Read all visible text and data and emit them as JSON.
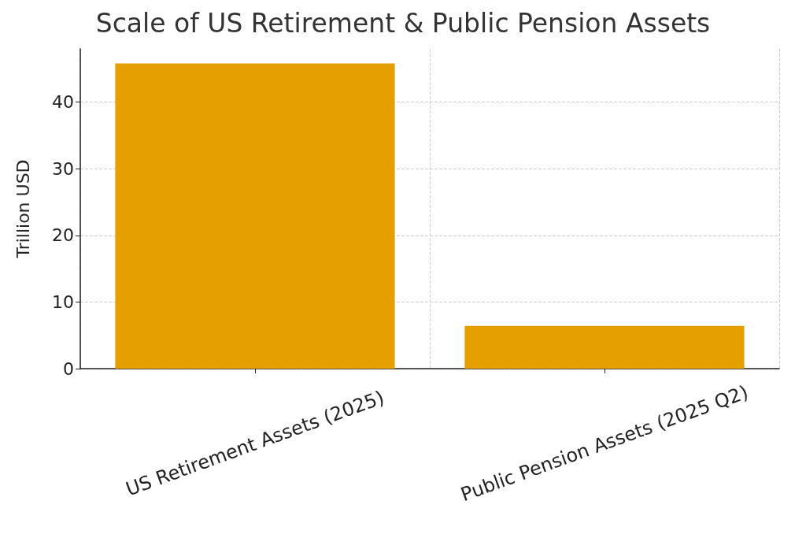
{
  "chart_data": {
    "type": "bar",
    "title": "Scale of US Retirement & Public Pension Assets",
    "categories": [
      "US Retirement Assets (2025)",
      "Public Pension Assets (2025 Q2)"
    ],
    "values": [
      45.8,
      6.4
    ],
    "color": "#e69f00",
    "ylabel": "Trillion USD",
    "ylim": [
      0,
      48
    ],
    "yticks": [
      0,
      10,
      20,
      30,
      40
    ],
    "grid": true
  }
}
